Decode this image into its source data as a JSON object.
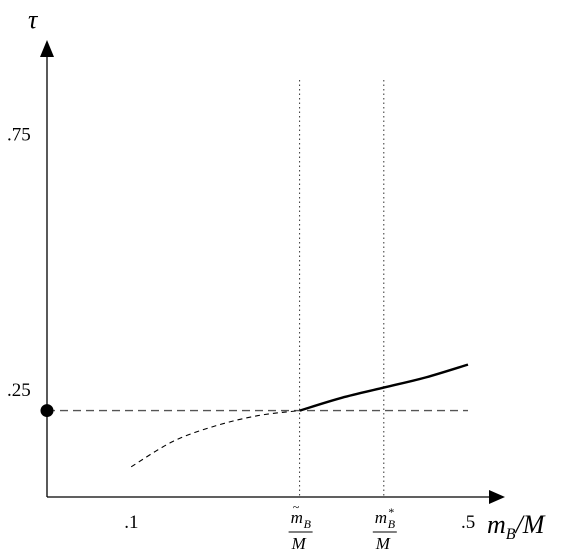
{
  "chart_data": {
    "type": "line",
    "ylabel": "τ",
    "xlabel": {
      "m": "m",
      "sub": "B",
      "rest": "/M"
    },
    "x_ticks": [
      {
        "value": 0.1,
        "label": ".1"
      },
      {
        "value": 0.5,
        "label": ".5"
      }
    ],
    "y_ticks": [
      {
        "value": 0.25,
        "label": ".25"
      },
      {
        "value": 0.75,
        "label": ".75"
      }
    ],
    "xlim": [
      0.0,
      0.5
    ],
    "ylim": [
      0.08,
      1.0
    ],
    "vertical_markers": [
      {
        "value": 0.3,
        "numerator": "m",
        "accent": "~",
        "sub": "B",
        "sup": "",
        "denominator": "M"
      },
      {
        "value": 0.4,
        "numerator": "m",
        "accent": "",
        "sub": "B",
        "sup": "*",
        "denominator": "M"
      }
    ],
    "horizontal_reference": {
      "y": 0.21,
      "x_from": 0.0,
      "x_to": 0.5,
      "marker_at_x": 0.0
    },
    "series": [
      {
        "style": "dashed",
        "x": [
          0.1,
          0.15,
          0.2,
          0.25,
          0.3
        ],
        "y": [
          0.1,
          0.15,
          0.18,
          0.2,
          0.21
        ]
      },
      {
        "style": "solid",
        "x": [
          0.3,
          0.35,
          0.4,
          0.45,
          0.5
        ],
        "y": [
          0.21,
          0.235,
          0.255,
          0.275,
          0.3
        ]
      }
    ],
    "grid": false,
    "legend": "none"
  },
  "style": {
    "axis_color": "#000000",
    "line_color": "#000000",
    "reference_color": "#555555"
  }
}
